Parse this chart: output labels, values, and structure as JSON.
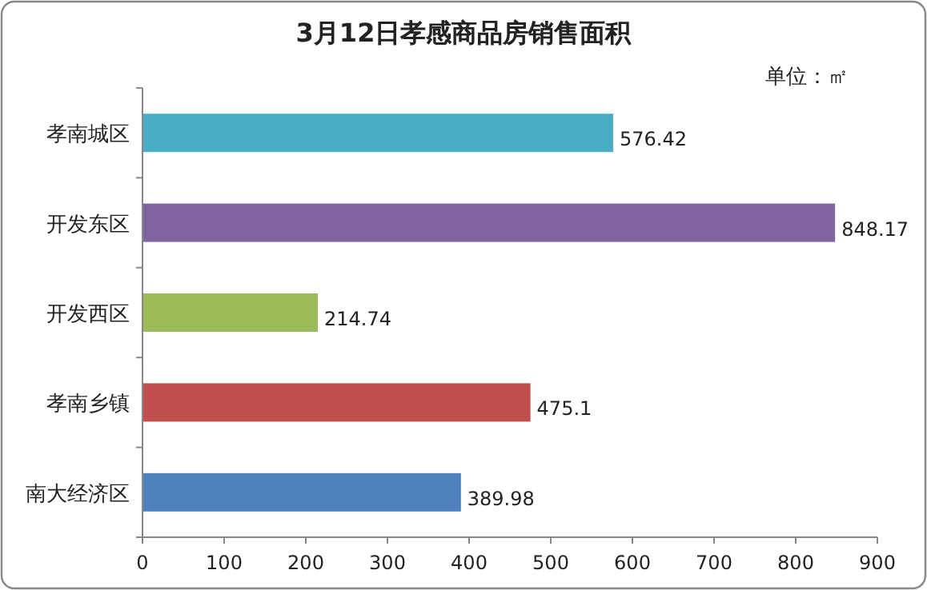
{
  "chart_data": {
    "type": "bar",
    "orientation": "horizontal",
    "title": "3月12日孝感商品房销售面积",
    "annotations": [
      "单位：㎡"
    ],
    "categories": [
      "孝南城区",
      "开发东区",
      "开发西区",
      "孝南乡镇",
      "南大经济区"
    ],
    "values": [
      576.42,
      848.17,
      214.74,
      475.1,
      389.98
    ],
    "colors": [
      "#4bacc6",
      "#8064a2",
      "#9bbb59",
      "#c0504d",
      "#4f81bd"
    ],
    "xlim": [
      0,
      900
    ],
    "xticks": [
      0,
      100,
      200,
      300,
      400,
      500,
      600,
      700,
      800,
      900
    ],
    "data_labels": true,
    "grid": false
  }
}
